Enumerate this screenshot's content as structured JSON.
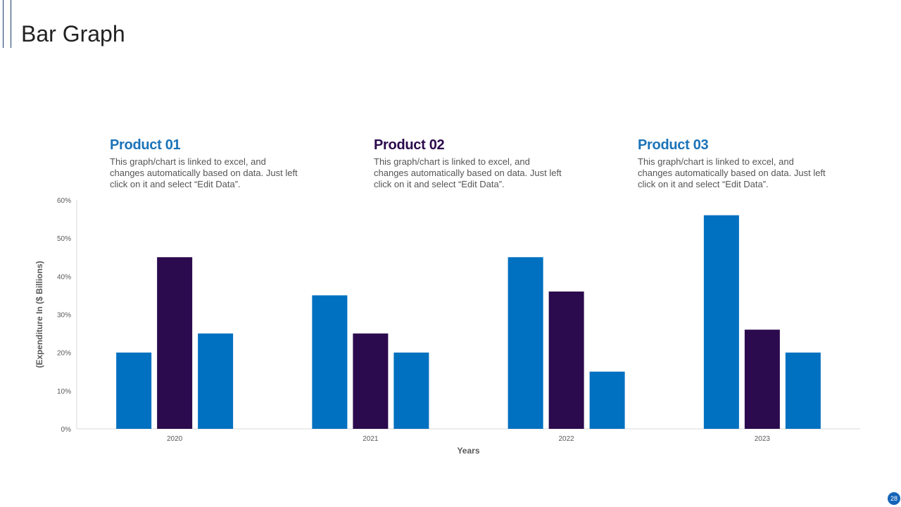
{
  "title": "Bar Graph",
  "products": [
    {
      "title": "Product 01",
      "description": "This graph/chart is linked to excel, and changes automatically based on data. Just left click on it and select “Edit Data”.",
      "color": "#1a73b8"
    },
    {
      "title": "Product 02",
      "description": "This graph/chart is linked to excel, and changes automatically based on data. Just left click on it and select “Edit Data”.",
      "color": "#2b0a4d"
    },
    {
      "title": "Product 03",
      "description": "This graph/chart is linked to excel, and changes automatically based on data. Just left click on it and select “Edit Data”.",
      "color": "#1a73b8"
    }
  ],
  "page_number": "28",
  "chart_data": {
    "type": "bar",
    "categories": [
      "2020",
      "2021",
      "2022",
      "2023"
    ],
    "series": [
      {
        "values": [
          20,
          35,
          45,
          56
        ],
        "color": "#0070c0"
      },
      {
        "values": [
          45,
          25,
          36,
          26
        ],
        "color": "#2b0a4d"
      },
      {
        "values": [
          25,
          20,
          15,
          20
        ],
        "color": "#0070c0"
      }
    ],
    "xlabel": "Years",
    "ylabel": "(Expenditure In ($ Billions)",
    "ylim": [
      0,
      60
    ],
    "yticks": [
      "0%",
      "10%",
      "20%",
      "30%",
      "40%",
      "50%",
      "60%"
    ],
    "grid": false
  }
}
